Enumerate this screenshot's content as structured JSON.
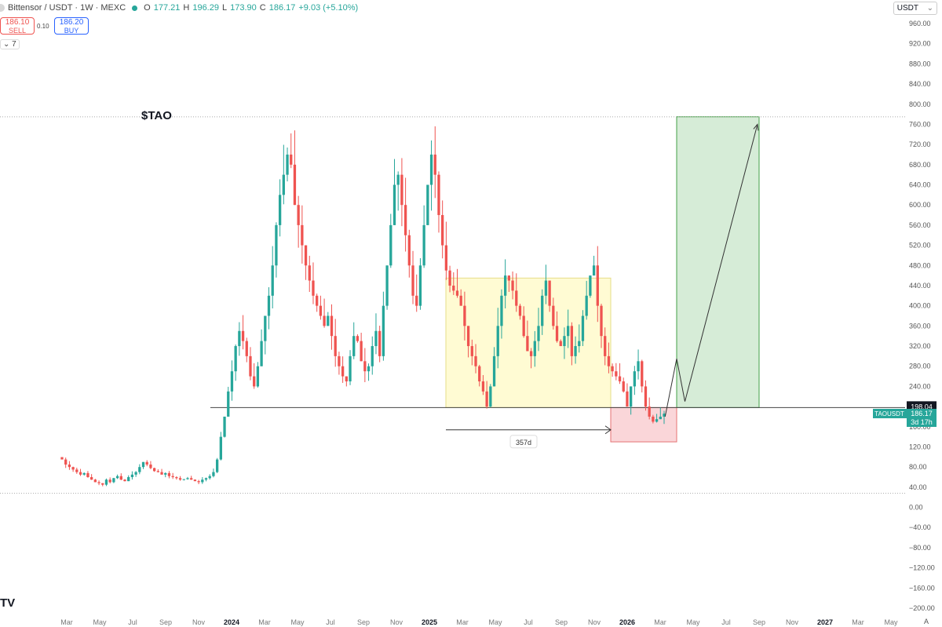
{
  "header": {
    "symbol": "Bittensor / USDT · 1W · MEXC",
    "open_label": "O",
    "open": "177.21",
    "high_label": "H",
    "high": "196.29",
    "low_label": "L",
    "low": "173.90",
    "close_label": "C",
    "close": "186.17",
    "change": "+9.03 (+5.10%)"
  },
  "trade": {
    "sell_price": "186.10",
    "sell_label": "SELL",
    "spread": "0.10",
    "buy_price": "186.20",
    "buy_label": "BUY"
  },
  "indicator_toggle": "7",
  "currency_selector": "USDT",
  "chart_data": {
    "type": "candlestick",
    "title": "$TAO",
    "y_axis": {
      "min": -200,
      "max": 960,
      "step": 40,
      "ticks": [
        "960.00",
        "920.00",
        "880.00",
        "840.00",
        "800.00",
        "760.00",
        "720.00",
        "680.00",
        "640.00",
        "600.00",
        "560.00",
        "520.00",
        "480.00",
        "440.00",
        "400.00",
        "360.00",
        "320.00",
        "280.00",
        "240.00",
        "200.00",
        "160.00",
        "120.00",
        "80.00",
        "40.00",
        "0.00",
        "−40.00",
        "−80.00",
        "−120.00",
        "−160.00",
        "−200.00"
      ]
    },
    "x_axis": {
      "ticks": [
        "Mar",
        "May",
        "Jul",
        "Sep",
        "Nov",
        "2024",
        "Mar",
        "May",
        "Jul",
        "Sep",
        "Nov",
        "2025",
        "Mar",
        "May",
        "Jul",
        "Sep",
        "Nov",
        "2026",
        "Mar",
        "May",
        "Jul",
        "Sep",
        "Nov",
        "2027",
        "Mar",
        "May"
      ],
      "bold_ticks": [
        "2024",
        "2025",
        "2026",
        "2027"
      ],
      "start": "2023-03",
      "end": "2027-05"
    },
    "ohlc_weekly_closes": [
      95,
      85,
      80,
      75,
      70,
      65,
      68,
      60,
      55,
      50,
      48,
      45,
      55,
      50,
      58,
      62,
      55,
      52,
      60,
      65,
      70,
      80,
      90,
      85,
      78,
      72,
      70,
      65,
      68,
      62,
      60,
      58,
      55,
      56,
      58,
      55,
      52,
      50,
      55,
      58,
      62,
      70,
      95,
      140,
      180,
      230,
      270,
      320,
      350,
      330,
      300,
      260,
      240,
      280,
      330,
      380,
      420,
      480,
      560,
      620,
      660,
      700,
      680,
      600,
      560,
      520,
      480,
      450,
      420,
      400,
      380,
      360,
      380,
      340,
      300,
      280,
      260,
      250,
      300,
      340,
      330,
      290,
      270,
      280,
      320,
      350,
      300,
      400,
      480,
      560,
      640,
      660,
      600,
      540,
      480,
      420,
      400,
      480,
      560,
      640,
      700,
      660,
      580,
      520,
      470,
      440,
      430,
      420,
      400,
      360,
      320,
      300,
      280,
      250,
      230,
      200,
      240,
      300,
      360,
      420,
      460,
      450,
      430,
      400,
      380,
      340,
      310,
      300,
      330,
      360,
      420,
      450,
      400,
      360,
      330,
      320,
      340,
      360,
      300,
      320,
      330,
      380,
      420,
      460,
      480,
      400,
      340,
      300,
      280,
      270,
      260,
      250,
      230,
      200,
      240,
      270,
      290,
      240,
      200,
      180,
      170,
      175,
      180,
      186
    ],
    "lines": [
      {
        "type": "horizontal",
        "value": 775
      },
      {
        "type": "horizontal",
        "value": 198
      },
      {
        "type": "horizontal",
        "value": 28
      }
    ],
    "zones": [
      {
        "name": "range",
        "from": "2025-02",
        "to": "2025-12",
        "low": 198,
        "high": 455
      },
      {
        "name": "target",
        "from": "2026-04",
        "to": "2026-09",
        "low": 198,
        "high": 775
      },
      {
        "name": "stop",
        "from": "2025-12",
        "to": "2026-04",
        "low": 130,
        "high": 198
      }
    ],
    "measure_label": "357d",
    "price_labels": {
      "level": "198.04",
      "symbol": "TAOUSDT",
      "last": "186.17",
      "countdown": "3d 17h"
    },
    "autoscale_label": "A"
  }
}
